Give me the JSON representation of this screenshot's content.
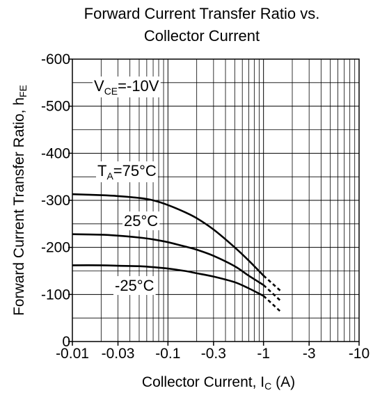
{
  "chart_data": {
    "type": "line",
    "title_lines": [
      "Forward Current Transfer Ratio vs.",
      "Collector Current"
    ],
    "xlabel": {
      "main": "Collector Current, I",
      "sub": "C",
      "tail": " (A)"
    },
    "ylabel": {
      "main": "Forward Current Transfer Ratio, h",
      "sub": "FE"
    },
    "x_scale": "log",
    "xlim": [
      -0.01,
      -10
    ],
    "ylim": [
      0,
      -600
    ],
    "grid": true,
    "x_ticks": [
      {
        "value": -0.01,
        "label": "-0.01"
      },
      {
        "value": -0.03,
        "label": "-0.03"
      },
      {
        "value": -0.1,
        "label": "-0.1"
      },
      {
        "value": -0.3,
        "label": "-0.3"
      },
      {
        "value": -1,
        "label": "-1"
      },
      {
        "value": -3,
        "label": "-3"
      },
      {
        "value": -10,
        "label": "-10"
      }
    ],
    "y_ticks": [
      {
        "value": 0,
        "label": "0"
      },
      {
        "value": -100,
        "label": "-100"
      },
      {
        "value": -200,
        "label": "-200"
      },
      {
        "value": -300,
        "label": "-300"
      },
      {
        "value": -400,
        "label": "-400"
      },
      {
        "value": -500,
        "label": "-500"
      },
      {
        "value": -600,
        "label": "-600"
      }
    ],
    "condition_label": {
      "main": "V",
      "sub": "CE",
      "tail": "=-10V"
    },
    "series": [
      {
        "name": "T_A=75°C",
        "label": {
          "main": "T",
          "sub": "A",
          "tail": "=75°C"
        },
        "points": [
          [
            -0.01,
            -313
          ],
          [
            -0.02,
            -311
          ],
          [
            -0.03,
            -309
          ],
          [
            -0.05,
            -305
          ],
          [
            -0.07,
            -300
          ],
          [
            -0.1,
            -290
          ],
          [
            -0.15,
            -275
          ],
          [
            -0.2,
            -262
          ],
          [
            -0.3,
            -238
          ],
          [
            -0.5,
            -200
          ],
          [
            -0.7,
            -172
          ],
          [
            -1,
            -140
          ]
        ],
        "extrapolated": [
          [
            -1,
            -140
          ],
          [
            -1.5,
            -108
          ]
        ]
      },
      {
        "name": "25°C",
        "label": {
          "main": "25°C",
          "sub": "",
          "tail": ""
        },
        "points": [
          [
            -0.01,
            -228
          ],
          [
            -0.02,
            -227
          ],
          [
            -0.03,
            -225
          ],
          [
            -0.05,
            -221
          ],
          [
            -0.07,
            -217
          ],
          [
            -0.1,
            -211
          ],
          [
            -0.15,
            -202
          ],
          [
            -0.2,
            -195
          ],
          [
            -0.3,
            -182
          ],
          [
            -0.5,
            -160
          ],
          [
            -0.7,
            -140
          ],
          [
            -1,
            -120
          ]
        ],
        "extrapolated": [
          [
            -1,
            -120
          ],
          [
            -1.5,
            -87
          ]
        ]
      },
      {
        "name": "-25°C",
        "label": {
          "main": "-25°C",
          "sub": "",
          "tail": ""
        },
        "points": [
          [
            -0.01,
            -162
          ],
          [
            -0.02,
            -162
          ],
          [
            -0.03,
            -161
          ],
          [
            -0.05,
            -160
          ],
          [
            -0.07,
            -158
          ],
          [
            -0.1,
            -155
          ],
          [
            -0.15,
            -150
          ],
          [
            -0.2,
            -145
          ],
          [
            -0.3,
            -138
          ],
          [
            -0.5,
            -126
          ],
          [
            -0.7,
            -113
          ],
          [
            -1,
            -97
          ]
        ],
        "extrapolated": [
          [
            -1,
            -97
          ],
          [
            -1.5,
            -64
          ]
        ]
      }
    ]
  }
}
